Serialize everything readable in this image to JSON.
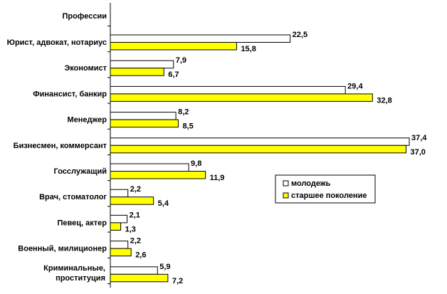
{
  "chart_data": {
    "type": "bar",
    "orientation": "horizontal",
    "header": "Профессии",
    "categories": [
      "Юрист, адвокат, нотариус",
      "Экономист",
      "Финансист, банкир",
      "Менеджер",
      "Бизнесмен, коммерсант",
      "Госслужащий",
      "Врач, стоматолог",
      "Певец, актер",
      "Военный, милиционер",
      "Криминальные, проституция"
    ],
    "series": [
      {
        "name": "молодежь",
        "color": "#ffffff",
        "values": [
          22.5,
          7.9,
          29.4,
          8.2,
          37.4,
          9.8,
          2.2,
          2.1,
          2.2,
          5.9
        ],
        "labels": [
          "22,5",
          "7,9",
          "29,4",
          "8,2",
          "37,4",
          "9,8",
          "2,2",
          "2,1",
          "2,2",
          "5,9"
        ]
      },
      {
        "name": "старшее поколение",
        "color": "#ffff00",
        "values": [
          15.8,
          6.7,
          32.8,
          8.5,
          37.0,
          11.9,
          5.4,
          1.3,
          2.6,
          7.2
        ],
        "labels": [
          "15,8",
          "6,7",
          "32,8",
          "8,5",
          "37,0",
          "11,9",
          "5,4",
          "1,3",
          "2,6",
          "7,2"
        ]
      }
    ],
    "xlim": [
      0,
      37.4
    ],
    "grid": false,
    "legend": "right"
  }
}
